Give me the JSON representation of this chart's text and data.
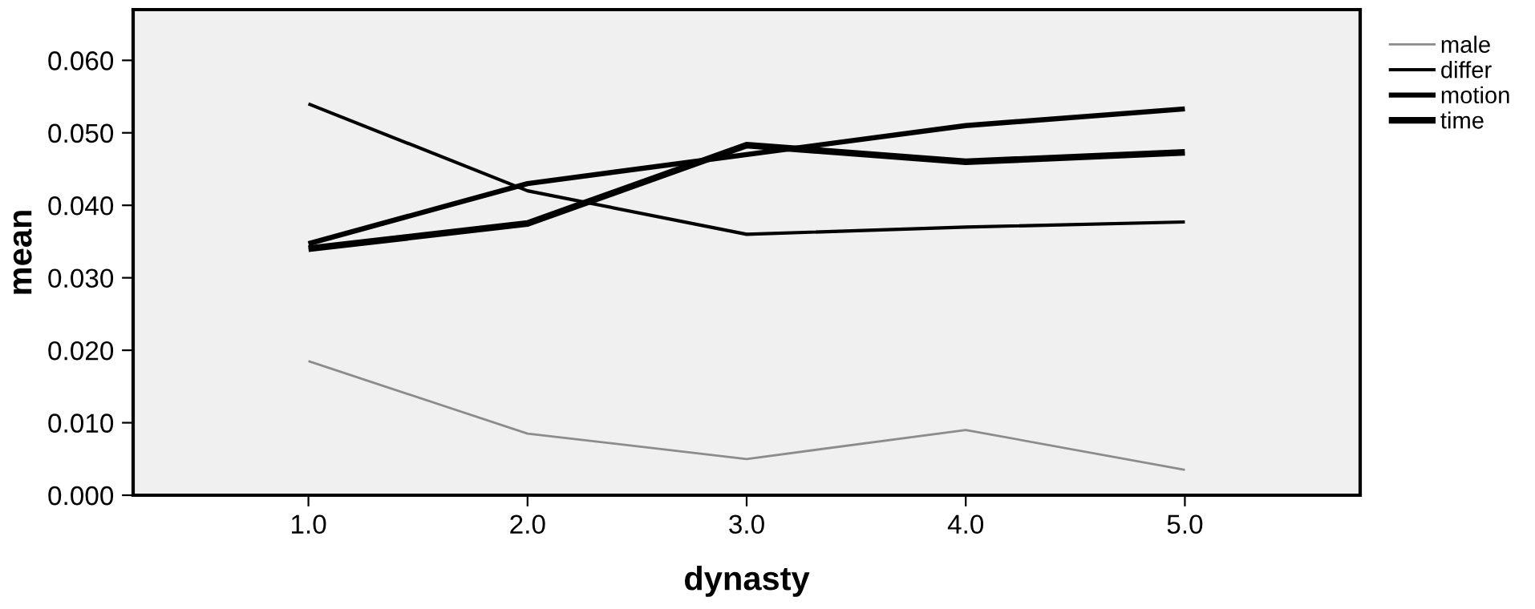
{
  "chart_data": {
    "type": "line",
    "xlabel": "dynasty",
    "ylabel": "mean",
    "x": [
      1,
      2,
      3,
      4,
      5
    ],
    "series": [
      {
        "name": "male",
        "color": "#8c8c8c",
        "values": [
          0.0185,
          0.0085,
          0.005,
          0.009,
          0.0035
        ]
      },
      {
        "name": "differ",
        "color": "#000000",
        "values": [
          0.054,
          0.042,
          0.036,
          0.037,
          0.0377
        ]
      },
      {
        "name": "motion",
        "color": "#000000",
        "values": [
          0.0347,
          0.043,
          0.047,
          0.051,
          0.0533
        ]
      },
      {
        "name": "time",
        "color": "#000000",
        "values": [
          0.034,
          0.0375,
          0.0483,
          0.046,
          0.0473
        ]
      }
    ],
    "xlim": [
      0.2,
      5.8
    ],
    "ylim": [
      0,
      0.067
    ],
    "xticks": [
      {
        "value": 1,
        "label": "1.0"
      },
      {
        "value": 2,
        "label": "2.0"
      },
      {
        "value": 3,
        "label": "3.0"
      },
      {
        "value": 4,
        "label": "4.0"
      },
      {
        "value": 5,
        "label": "5.0"
      }
    ],
    "yticks": [
      {
        "value": 0,
        "label": "0.000"
      },
      {
        "value": 0.01,
        "label": "0.010"
      },
      {
        "value": 0.02,
        "label": "0.020"
      },
      {
        "value": 0.03,
        "label": "0.030"
      },
      {
        "value": 0.04,
        "label": "0.040"
      },
      {
        "value": 0.05,
        "label": "0.050"
      },
      {
        "value": 0.06,
        "label": "0.060"
      }
    ],
    "grid": false,
    "legend": "top right",
    "marker": "none",
    "line_style": "solid"
  }
}
